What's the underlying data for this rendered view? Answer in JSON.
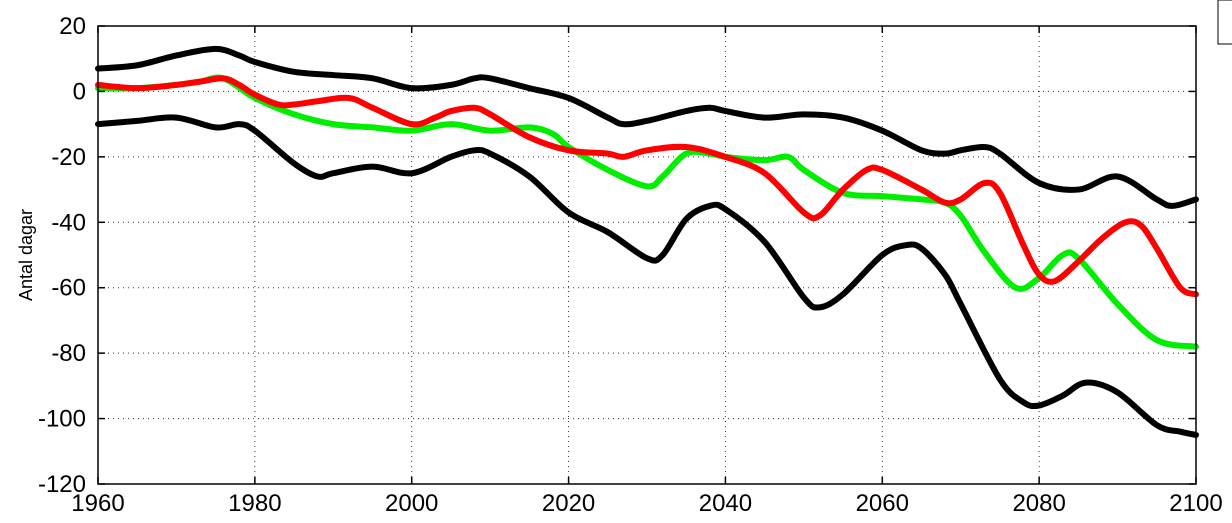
{
  "chart_data": {
    "type": "line",
    "title": "",
    "xlabel": "",
    "ylabel": "Antal dagar",
    "xlim": [
      1960,
      2100
    ],
    "ylim": [
      -120,
      20
    ],
    "xticks": [
      1960,
      1980,
      2000,
      2020,
      2040,
      2060,
      2080,
      2100
    ],
    "yticks": [
      20,
      0,
      -20,
      -40,
      -60,
      -80,
      -100,
      -120
    ],
    "xtick_labels": [
      "1960",
      "1980",
      "2000",
      "2020",
      "2040",
      "2060",
      "2080",
      "2100"
    ],
    "ytick_labels": [
      "20",
      "0",
      "-20",
      "-40",
      "-60",
      "-80",
      "-100",
      "-120"
    ],
    "grid": true,
    "series": [
      {
        "color": "#000000",
        "x": [
          1960,
          1965,
          1970,
          1975,
          1978,
          1980,
          1985,
          1990,
          1995,
          2000,
          2005,
          2008,
          2010,
          2015,
          2020,
          2025,
          2027,
          2030,
          2035,
          2038,
          2040,
          2045,
          2050,
          2055,
          2060,
          2065,
          2068,
          2070,
          2073,
          2075,
          2080,
          2085,
          2090,
          2095,
          2097,
          2100
        ],
        "values": [
          7,
          8,
          11,
          13,
          11,
          9,
          6,
          5,
          4,
          1,
          2,
          4,
          4,
          1,
          -2,
          -8,
          -10,
          -9,
          -6,
          -5,
          -6,
          -8,
          -7,
          -8,
          -12,
          -18,
          -19,
          -18,
          -17,
          -19,
          -28,
          -30,
          -26,
          -33,
          -35,
          -33
        ]
      },
      {
        "color": "#000000",
        "x": [
          1960,
          1965,
          1970,
          1975,
          1978,
          1980,
          1985,
          1988,
          1990,
          1995,
          2000,
          2005,
          2008,
          2010,
          2015,
          2020,
          2025,
          2030,
          2032,
          2035,
          2038,
          2040,
          2045,
          2050,
          2052,
          2055,
          2060,
          2063,
          2065,
          2068,
          2070,
          2075,
          2078,
          2080,
          2083,
          2086,
          2090,
          2095,
          2098,
          2100
        ],
        "values": [
          -10,
          -9,
          -8,
          -11,
          -10,
          -12,
          -22,
          -26,
          -25,
          -23,
          -25,
          -20,
          -18,
          -19,
          -26,
          -37,
          -43,
          -51,
          -50,
          -39,
          -35,
          -36,
          -46,
          -63,
          -66,
          -62,
          -50,
          -47,
          -48,
          -56,
          -65,
          -88,
          -95,
          -96,
          -93,
          -89,
          -92,
          -102,
          -104,
          -105
        ]
      },
      {
        "color": "#00ee00",
        "x": [
          1960,
          1965,
          1970,
          1973,
          1976,
          1980,
          1985,
          1990,
          1995,
          2000,
          2005,
          2010,
          2015,
          2018,
          2020,
          2025,
          2030,
          2032,
          2035,
          2038,
          2040,
          2045,
          2048,
          2050,
          2055,
          2060,
          2065,
          2068,
          2070,
          2073,
          2077,
          2080,
          2083,
          2085,
          2090,
          2095,
          2100
        ],
        "values": [
          1,
          1,
          2,
          3,
          4,
          -2,
          -7,
          -10,
          -11,
          -12,
          -10,
          -12,
          -11,
          -13,
          -17,
          -24,
          -29,
          -26,
          -19,
          -19,
          -20,
          -21,
          -20,
          -24,
          -31,
          -32,
          -33,
          -34,
          -38,
          -49,
          -60,
          -57,
          -50,
          -51,
          -65,
          -76,
          -78
        ]
      },
      {
        "color": "#ff0000",
        "x": [
          1960,
          1965,
          1970,
          1973,
          1976,
          1978,
          1980,
          1983,
          1985,
          1988,
          1992,
          1995,
          2000,
          2003,
          2005,
          2008,
          2010,
          2015,
          2020,
          2025,
          2027,
          2030,
          2035,
          2040,
          2045,
          2050,
          2052,
          2055,
          2058,
          2060,
          2065,
          2068,
          2070,
          2073,
          2075,
          2078,
          2080,
          2082,
          2085,
          2088,
          2091,
          2093,
          2095,
          2098,
          2100
        ],
        "values": [
          2,
          1,
          2,
          3,
          4,
          2,
          -1,
          -4,
          -4,
          -3,
          -2,
          -5,
          -10,
          -8,
          -6,
          -5,
          -7,
          -14,
          -18,
          -19,
          -20,
          -18,
          -17,
          -20,
          -25,
          -37,
          -38,
          -30,
          -24,
          -24,
          -30,
          -34,
          -33,
          -28,
          -31,
          -47,
          -56,
          -58,
          -52,
          -45,
          -40,
          -41,
          -48,
          -60,
          -62
        ]
      }
    ]
  }
}
